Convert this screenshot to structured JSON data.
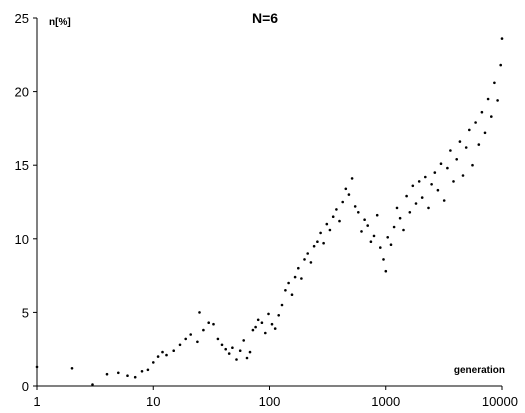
{
  "chart_data": {
    "type": "scatter",
    "title": "N=6",
    "xlabel": "generation",
    "ylabel": "n[%]",
    "xscale": "log",
    "xlim": [
      1,
      10000
    ],
    "ylim": [
      0,
      25
    ],
    "grid": false,
    "legend": "none",
    "point_color": "#000000",
    "x_ticks": [
      1,
      10,
      100,
      1000,
      10000
    ],
    "x_tick_labels": [
      "1",
      "10",
      "100",
      "1000",
      "10000"
    ],
    "y_ticks": [
      0,
      5,
      10,
      15,
      20,
      25
    ],
    "y_tick_labels": [
      "0",
      "5",
      "10",
      "15",
      "20",
      "25"
    ],
    "series": [
      {
        "points": [
          [
            1,
            1.3
          ],
          [
            2,
            1.2
          ],
          [
            3,
            0.1
          ],
          [
            4,
            0.8
          ],
          [
            5,
            0.9
          ],
          [
            6,
            0.7
          ],
          [
            7,
            0.6
          ],
          [
            8,
            1.0
          ],
          [
            9,
            1.1
          ],
          [
            10,
            1.6
          ],
          [
            11,
            2.0
          ],
          [
            12,
            2.3
          ],
          [
            13,
            2.1
          ],
          [
            15,
            2.4
          ],
          [
            17,
            2.8
          ],
          [
            19,
            3.2
          ],
          [
            21,
            3.5
          ],
          [
            24,
            3.0
          ],
          [
            25,
            5.0
          ],
          [
            27,
            3.8
          ],
          [
            30,
            4.3
          ],
          [
            33,
            4.2
          ],
          [
            36,
            3.2
          ],
          [
            39,
            2.8
          ],
          [
            42,
            2.5
          ],
          [
            45,
            2.2
          ],
          [
            48,
            2.6
          ],
          [
            52,
            1.8
          ],
          [
            56,
            2.4
          ],
          [
            60,
            3.1
          ],
          [
            64,
            1.9
          ],
          [
            68,
            2.3
          ],
          [
            72,
            3.8
          ],
          [
            76,
            4.0
          ],
          [
            80,
            4.5
          ],
          [
            86,
            4.3
          ],
          [
            92,
            3.6
          ],
          [
            98,
            4.9
          ],
          [
            105,
            4.2
          ],
          [
            112,
            3.9
          ],
          [
            120,
            4.8
          ],
          [
            128,
            5.5
          ],
          [
            137,
            6.5
          ],
          [
            146,
            7.0
          ],
          [
            156,
            6.2
          ],
          [
            166,
            7.4
          ],
          [
            177,
            8.0
          ],
          [
            188,
            7.3
          ],
          [
            200,
            8.6
          ],
          [
            213,
            9.0
          ],
          [
            227,
            8.4
          ],
          [
            242,
            9.5
          ],
          [
            258,
            9.8
          ],
          [
            275,
            10.4
          ],
          [
            292,
            9.7
          ],
          [
            311,
            11.0
          ],
          [
            331,
            10.6
          ],
          [
            353,
            11.5
          ],
          [
            376,
            12.0
          ],
          [
            400,
            11.2
          ],
          [
            426,
            12.5
          ],
          [
            453,
            13.4
          ],
          [
            482,
            13.0
          ],
          [
            513,
            14.1
          ],
          [
            546,
            12.2
          ],
          [
            581,
            11.8
          ],
          [
            618,
            10.5
          ],
          [
            658,
            11.3
          ],
          [
            700,
            10.9
          ],
          [
            745,
            9.8
          ],
          [
            793,
            10.2
          ],
          [
            844,
            11.6
          ],
          [
            898,
            9.4
          ],
          [
            956,
            8.6
          ],
          [
            1000,
            7.8
          ],
          [
            1040,
            10.1
          ],
          [
            1110,
            9.6
          ],
          [
            1180,
            10.8
          ],
          [
            1250,
            12.1
          ],
          [
            1330,
            11.4
          ],
          [
            1420,
            10.6
          ],
          [
            1510,
            12.9
          ],
          [
            1610,
            11.8
          ],
          [
            1710,
            13.6
          ],
          [
            1820,
            12.4
          ],
          [
            1940,
            13.9
          ],
          [
            2060,
            12.8
          ],
          [
            2190,
            14.2
          ],
          [
            2330,
            12.1
          ],
          [
            2480,
            13.7
          ],
          [
            2640,
            14.5
          ],
          [
            2810,
            13.3
          ],
          [
            2990,
            15.1
          ],
          [
            3180,
            12.6
          ],
          [
            3390,
            14.8
          ],
          [
            3600,
            16.0
          ],
          [
            3830,
            13.9
          ],
          [
            4080,
            15.4
          ],
          [
            4340,
            16.6
          ],
          [
            4620,
            14.3
          ],
          [
            4920,
            16.2
          ],
          [
            5230,
            17.4
          ],
          [
            5570,
            15.0
          ],
          [
            5930,
            17.9
          ],
          [
            6310,
            16.4
          ],
          [
            6710,
            18.6
          ],
          [
            7140,
            17.2
          ],
          [
            7600,
            19.5
          ],
          [
            8090,
            18.3
          ],
          [
            8610,
            20.6
          ],
          [
            9160,
            19.4
          ],
          [
            9750,
            21.8
          ],
          [
            10000,
            23.6
          ]
        ]
      }
    ]
  }
}
